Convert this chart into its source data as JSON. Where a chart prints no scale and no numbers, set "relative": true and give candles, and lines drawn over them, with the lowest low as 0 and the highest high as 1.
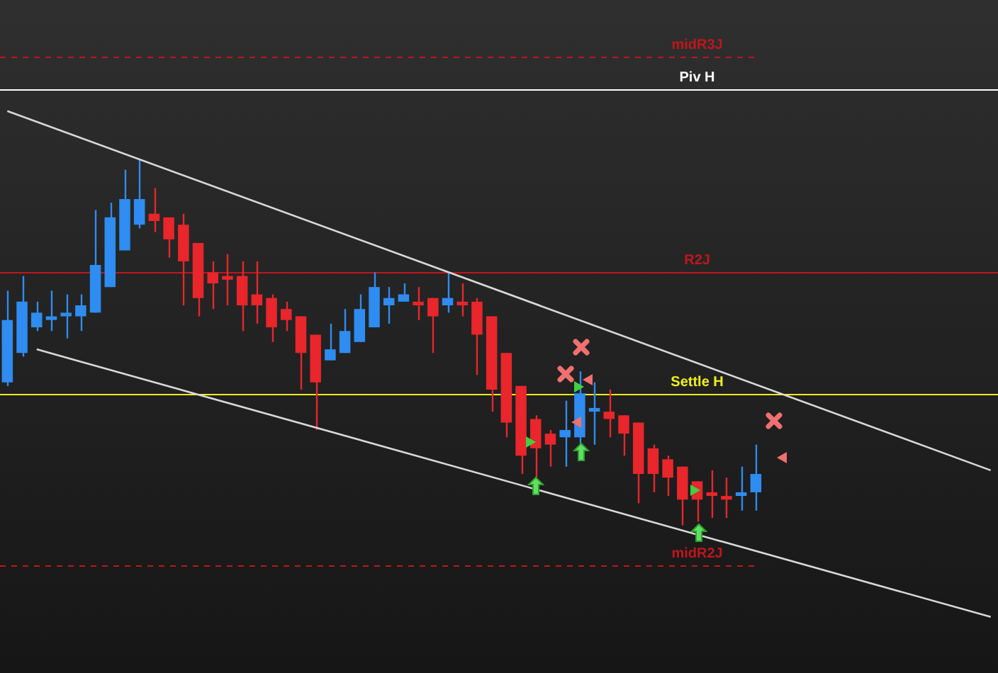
{
  "chart_data": {
    "type": "candlestick",
    "relative": true,
    "legend": false,
    "categories": [
      null,
      null,
      null,
      null,
      null,
      null,
      null,
      null,
      null,
      null,
      null,
      null,
      null,
      null,
      null,
      null,
      null,
      null,
      null,
      null,
      null,
      null,
      null,
      null,
      null,
      null,
      null,
      null,
      null,
      null,
      null,
      null,
      null,
      null,
      null,
      null,
      null,
      null,
      null,
      null,
      null,
      null,
      null,
      null,
      null,
      null,
      null,
      null,
      null,
      null,
      null,
      null,
      null,
      null,
      null,
      null,
      null,
      null,
      null,
      null,
      null,
      null,
      null,
      null,
      null,
      null,
      null,
      null
    ],
    "ohlc": [
      [
        0.39,
        0.64,
        0.38,
        0.56
      ],
      [
        0.47,
        0.68,
        0.46,
        0.61
      ],
      [
        0.54,
        0.61,
        0.53,
        0.58
      ],
      [
        0.56,
        0.64,
        0.53,
        0.57
      ],
      [
        0.57,
        0.63,
        0.51,
        0.58
      ],
      [
        0.57,
        0.63,
        0.53,
        0.6
      ],
      [
        0.58,
        0.86,
        0.58,
        0.71
      ],
      [
        0.65,
        0.88,
        0.65,
        0.84
      ],
      [
        0.75,
        0.97,
        0.75,
        0.89
      ],
      [
        0.82,
        1,
        0.81,
        0.89
      ],
      [
        0.85,
        0.92,
        0.8,
        0.83
      ],
      [
        0.84,
        0.84,
        0.73,
        0.78
      ],
      [
        0.82,
        0.85,
        0.6,
        0.72
      ],
      [
        0.77,
        0.77,
        0.57,
        0.62
      ],
      [
        0.69,
        0.72,
        0.59,
        0.66
      ],
      [
        0.68,
        0.74,
        0.6,
        0.67
      ],
      [
        0.68,
        0.72,
        0.53,
        0.6
      ],
      [
        0.63,
        0.72,
        0.55,
        0.6
      ],
      [
        0.62,
        0.63,
        0.5,
        0.54
      ],
      [
        0.59,
        0.61,
        0.53,
        0.56
      ],
      [
        0.57,
        0.57,
        0.37,
        0.47
      ],
      [
        0.52,
        0.52,
        0.26,
        0.39
      ],
      [
        0.45,
        0.55,
        0.45,
        0.48
      ],
      [
        0.47,
        0.59,
        0.47,
        0.53
      ],
      [
        0.5,
        0.63,
        0.5,
        0.59
      ],
      [
        0.54,
        0.69,
        0.54,
        0.65
      ],
      [
        0.6,
        0.65,
        0.55,
        0.62
      ],
      [
        0.61,
        0.66,
        0.61,
        0.63
      ],
      [
        0.61,
        0.65,
        0.56,
        0.6
      ],
      [
        0.62,
        0.62,
        0.47,
        0.57
      ],
      [
        0.6,
        0.69,
        0.58,
        0.62
      ],
      [
        0.61,
        0.66,
        0.57,
        0.6
      ],
      [
        0.61,
        0.62,
        0.41,
        0.52
      ],
      [
        0.57,
        0.57,
        0.31,
        0.37
      ],
      [
        0.47,
        0.47,
        0.24,
        0.28
      ],
      [
        0.38,
        0.38,
        0.14,
        0.19
      ],
      [
        0.29,
        0.3,
        0.13,
        0.21
      ],
      [
        0.25,
        0.26,
        0.16,
        0.22
      ],
      [
        0.24,
        0.34,
        0.16,
        0.26
      ],
      [
        0.24,
        0.42,
        0.22,
        0.36
      ],
      [
        0.31,
        0.39,
        0.22,
        0.32
      ],
      [
        0.31,
        0.37,
        0.24,
        0.29
      ],
      [
        0.3,
        0.3,
        0.19,
        0.25
      ],
      [
        0.28,
        0.28,
        0.06,
        0.14
      ],
      [
        0.21,
        0.22,
        0.09,
        0.14
      ],
      [
        0.18,
        0.19,
        0.08,
        0.13
      ],
      [
        0.16,
        0.16,
        0,
        0.07
      ],
      [
        0.12,
        0.12,
        0.01,
        0.07
      ],
      [
        0.09,
        0.15,
        0.02,
        0.08
      ],
      [
        0.08,
        0.13,
        0.02,
        0.07
      ],
      [
        0.08,
        0.16,
        0.04,
        0.09
      ],
      [
        0.09,
        0.22,
        0.04,
        0.14
      ],
      null,
      null,
      null,
      null,
      null,
      null,
      null,
      null,
      null,
      null,
      null,
      null,
      null,
      null,
      null,
      null
    ],
    "colors": [
      "#2f8cf0",
      "#2f8cf0",
      "#2f8cf0",
      "#2f8cf0",
      "#2f8cf0",
      "#2f8cf0",
      "#2f8cf0",
      "#2f8cf0",
      "#2f8cf0",
      "#2f8cf0",
      "#e8262b",
      "#e8262b",
      "#e8262b",
      "#e8262b",
      "#e8262b",
      "#e8262b",
      "#e8262b",
      "#e8262b",
      "#e8262b",
      "#e8262b",
      "#e8262b",
      "#e8262b",
      "#2f8cf0",
      "#2f8cf0",
      "#2f8cf0",
      "#2f8cf0",
      "#2f8cf0",
      "#2f8cf0",
      "#e8262b",
      "#e8262b",
      "#2f8cf0",
      "#e8262b",
      "#e8262b",
      "#e8262b",
      "#e8262b",
      "#e8262b",
      "#e8262b",
      "#e8262b",
      "#2f8cf0",
      "#2f8cf0",
      "#2f8cf0",
      "#e8262b",
      "#e8262b",
      "#e8262b",
      "#e8262b",
      "#e8262b",
      "#e8262b",
      "#e8262b",
      "#e8262b",
      "#e8262b",
      "#2f8cf0",
      "#2f8cf0",
      null,
      null,
      null,
      null,
      null,
      null,
      null,
      null,
      null,
      null,
      null,
      null,
      null,
      null,
      null,
      null
    ],
    "series": [
      {
        "type": "line",
        "color": "#d8d8d8",
        "values": [
          1.13,
          null,
          null,
          null,
          null,
          null,
          null,
          null,
          null,
          null,
          null,
          null,
          null,
          null,
          null,
          null,
          null,
          null,
          null,
          null,
          null,
          null,
          null,
          null,
          null,
          null,
          null,
          null,
          null,
          null,
          null,
          null,
          null,
          null,
          null,
          null,
          null,
          null,
          null,
          null,
          null,
          null,
          null,
          null,
          null,
          null,
          null,
          null,
          null,
          null,
          null,
          null,
          null,
          null,
          null,
          null,
          null,
          null,
          null,
          null,
          null,
          null,
          null,
          null,
          null,
          null,
          null,
          0.15
        ]
      },
      {
        "type": "line",
        "color": "#d8d8d8",
        "values": [
          null,
          null,
          0.48,
          null,
          null,
          null,
          null,
          null,
          null,
          null,
          null,
          null,
          null,
          null,
          null,
          null,
          null,
          null,
          null,
          null,
          null,
          null,
          null,
          null,
          null,
          null,
          null,
          null,
          null,
          null,
          null,
          null,
          null,
          null,
          null,
          null,
          null,
          null,
          null,
          null,
          null,
          null,
          null,
          null,
          null,
          null,
          null,
          null,
          null,
          null,
          null,
          null,
          null,
          null,
          null,
          null,
          null,
          null,
          null,
          null,
          null,
          null,
          null,
          null,
          null,
          null,
          null,
          -0.25
        ]
      }
    ],
    "ref_lines": [
      {
        "axis": "y",
        "value": 1.28,
        "label": "midR3J",
        "color": "#c0161c",
        "line_style": "dashed"
      },
      {
        "axis": "y",
        "value": 1.19,
        "label": "Piv H",
        "color": "#ffffff",
        "line_style": "solid"
      },
      {
        "axis": "y",
        "value": 0.69,
        "label": "R2J",
        "color": "#c0161c",
        "line_style": "solid"
      },
      {
        "axis": "y",
        "value": 0.36,
        "label": "Settle H",
        "color": "#f0f020",
        "line_style": "solid"
      },
      {
        "axis": "y",
        "value": -0.11,
        "label": "midR2J",
        "color": "#c0161c",
        "line_style": "dashed"
      }
    ]
  }
}
